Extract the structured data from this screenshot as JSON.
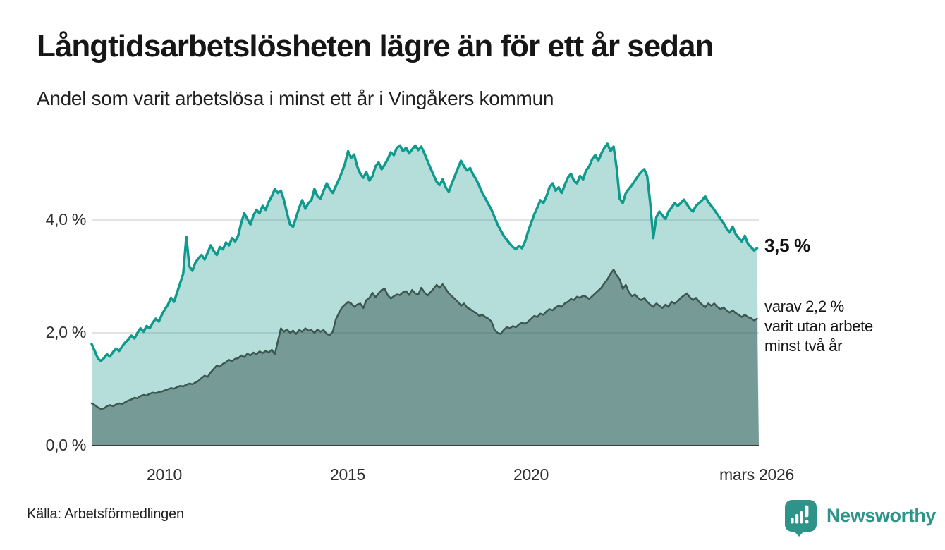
{
  "header": {
    "title": "Långtidsarbetslösheten lägre än för ett år sedan",
    "subtitle": "Andel som varit arbetslösa i minst ett år i Vingåkers kommun"
  },
  "chart_data": {
    "type": "area",
    "unit": "%",
    "x_start": "2008-01",
    "x_end": "2026-03",
    "months_per_point": 1,
    "ylim": [
      0,
      5.6
    ],
    "y_ticks": [
      4.0,
      2.0,
      0.0
    ],
    "y_tick_labels": {
      "t4": "4,0 %",
      "t2": "2,0 %",
      "t0": "0,0 %"
    },
    "x_tick_labels": {
      "t2010": "2010",
      "t2015": "2015",
      "t2020": "2020",
      "tend": "mars 2026"
    },
    "grid_color": "#e4e4e4",
    "axis_color": "#3d3d3d",
    "series": [
      {
        "name": "Arbetslösa minst ett år",
        "line_color": "#0f9a8d",
        "fill_color": "rgba(24,153,139,0.32)",
        "line_width": 3.5,
        "end_value": 3.5,
        "values": [
          1.8,
          1.68,
          1.55,
          1.5,
          1.55,
          1.62,
          1.58,
          1.66,
          1.72,
          1.68,
          1.76,
          1.83,
          1.88,
          1.95,
          1.9,
          2.0,
          2.08,
          2.02,
          2.12,
          2.08,
          2.18,
          2.25,
          2.2,
          2.32,
          2.42,
          2.5,
          2.62,
          2.55,
          2.72,
          2.88,
          3.05,
          3.7,
          3.18,
          3.1,
          3.25,
          3.32,
          3.38,
          3.3,
          3.42,
          3.55,
          3.45,
          3.38,
          3.52,
          3.48,
          3.6,
          3.55,
          3.68,
          3.62,
          3.72,
          3.95,
          4.12,
          4.02,
          3.92,
          4.08,
          4.18,
          4.12,
          4.25,
          4.18,
          4.32,
          4.42,
          4.55,
          4.48,
          4.52,
          4.35,
          4.12,
          3.92,
          3.88,
          4.05,
          4.22,
          4.35,
          4.2,
          4.3,
          4.35,
          4.55,
          4.42,
          4.38,
          4.52,
          4.65,
          4.55,
          4.48,
          4.6,
          4.72,
          4.85,
          5.0,
          5.22,
          5.1,
          5.16,
          4.95,
          4.82,
          4.75,
          4.85,
          4.7,
          4.78,
          4.95,
          5.02,
          4.9,
          4.98,
          5.08,
          5.2,
          5.15,
          5.28,
          5.32,
          5.22,
          5.28,
          5.18,
          5.25,
          5.32,
          5.24,
          5.3,
          5.18,
          5.05,
          4.92,
          4.8,
          4.68,
          4.62,
          4.72,
          4.58,
          4.5,
          4.65,
          4.78,
          4.92,
          5.05,
          4.95,
          4.88,
          4.92,
          4.8,
          4.72,
          4.6,
          4.48,
          4.38,
          4.28,
          4.18,
          4.05,
          3.92,
          3.82,
          3.72,
          3.65,
          3.58,
          3.52,
          3.48,
          3.54,
          3.5,
          3.62,
          3.8,
          3.95,
          4.1,
          4.22,
          4.35,
          4.3,
          4.42,
          4.58,
          4.65,
          4.52,
          4.58,
          4.48,
          4.62,
          4.75,
          4.82,
          4.7,
          4.65,
          4.78,
          4.72,
          4.88,
          4.95,
          5.08,
          5.15,
          5.05,
          5.18,
          5.28,
          5.35,
          5.22,
          5.3,
          4.92,
          4.38,
          4.3,
          4.48,
          4.55,
          4.62,
          4.7,
          4.78,
          4.85,
          4.9,
          4.78,
          4.3,
          3.68,
          4.05,
          4.15,
          4.08,
          4.02,
          4.15,
          4.22,
          4.3,
          4.25,
          4.3,
          4.36,
          4.28,
          4.2,
          4.15,
          4.25,
          4.3,
          4.35,
          4.42,
          4.32,
          4.25,
          4.18,
          4.1,
          4.02,
          3.95,
          3.85,
          3.78,
          3.88,
          3.75,
          3.68,
          3.62,
          3.72,
          3.58,
          3.52,
          3.46,
          3.5
        ]
      },
      {
        "name": "Arbetslösa minst två år",
        "line_color": "#3c5651",
        "fill_color": "rgba(38,68,63,0.44)",
        "line_width": 2.5,
        "end_value": 2.2,
        "values": [
          0.75,
          0.72,
          0.68,
          0.65,
          0.66,
          0.7,
          0.72,
          0.7,
          0.73,
          0.75,
          0.74,
          0.77,
          0.8,
          0.82,
          0.85,
          0.84,
          0.88,
          0.9,
          0.89,
          0.92,
          0.94,
          0.93,
          0.95,
          0.96,
          0.98,
          1.0,
          1.02,
          1.01,
          1.04,
          1.06,
          1.05,
          1.08,
          1.1,
          1.09,
          1.12,
          1.15,
          1.2,
          1.24,
          1.22,
          1.3,
          1.36,
          1.42,
          1.4,
          1.45,
          1.48,
          1.52,
          1.5,
          1.54,
          1.55,
          1.6,
          1.57,
          1.63,
          1.6,
          1.65,
          1.62,
          1.67,
          1.64,
          1.68,
          1.65,
          1.7,
          1.62,
          1.85,
          2.08,
          2.02,
          2.06,
          2.0,
          2.04,
          1.98,
          2.05,
          2.02,
          2.08,
          2.04,
          2.05,
          2.0,
          2.06,
          2.02,
          2.05,
          1.98,
          1.96,
          2.02,
          2.24,
          2.35,
          2.45,
          2.5,
          2.55,
          2.52,
          2.46,
          2.5,
          2.52,
          2.44,
          2.58,
          2.62,
          2.71,
          2.63,
          2.7,
          2.76,
          2.78,
          2.67,
          2.61,
          2.65,
          2.68,
          2.67,
          2.72,
          2.74,
          2.67,
          2.76,
          2.7,
          2.68,
          2.8,
          2.72,
          2.66,
          2.72,
          2.78,
          2.85,
          2.8,
          2.86,
          2.78,
          2.7,
          2.65,
          2.6,
          2.55,
          2.48,
          2.52,
          2.45,
          2.42,
          2.38,
          2.35,
          2.3,
          2.32,
          2.28,
          2.25,
          2.2,
          2.05,
          2.0,
          1.98,
          2.05,
          2.1,
          2.08,
          2.12,
          2.1,
          2.15,
          2.18,
          2.16,
          2.2,
          2.25,
          2.3,
          2.28,
          2.34,
          2.32,
          2.38,
          2.42,
          2.4,
          2.45,
          2.48,
          2.46,
          2.52,
          2.55,
          2.6,
          2.58,
          2.64,
          2.62,
          2.66,
          2.64,
          2.6,
          2.65,
          2.7,
          2.75,
          2.8,
          2.88,
          2.95,
          3.05,
          3.12,
          3.02,
          2.95,
          2.78,
          2.85,
          2.72,
          2.65,
          2.68,
          2.62,
          2.58,
          2.62,
          2.55,
          2.5,
          2.46,
          2.52,
          2.48,
          2.44,
          2.5,
          2.46,
          2.55,
          2.52,
          2.56,
          2.62,
          2.66,
          2.7,
          2.63,
          2.58,
          2.62,
          2.55,
          2.5,
          2.45,
          2.52,
          2.48,
          2.52,
          2.46,
          2.42,
          2.45,
          2.4,
          2.36,
          2.4,
          2.35,
          2.32,
          2.28,
          2.32,
          2.28,
          2.26,
          2.22,
          2.25
        ]
      }
    ],
    "end_labels": {
      "primary": "3,5 %",
      "secondary_line1": "varav 2,2 %",
      "secondary_line2": "varit utan arbete",
      "secondary_line3": "minst två år"
    }
  },
  "footer": {
    "source": "Källa: Arbetsförmedlingen",
    "brand": "Newsworthy",
    "brand_color": "#2e948a"
  }
}
